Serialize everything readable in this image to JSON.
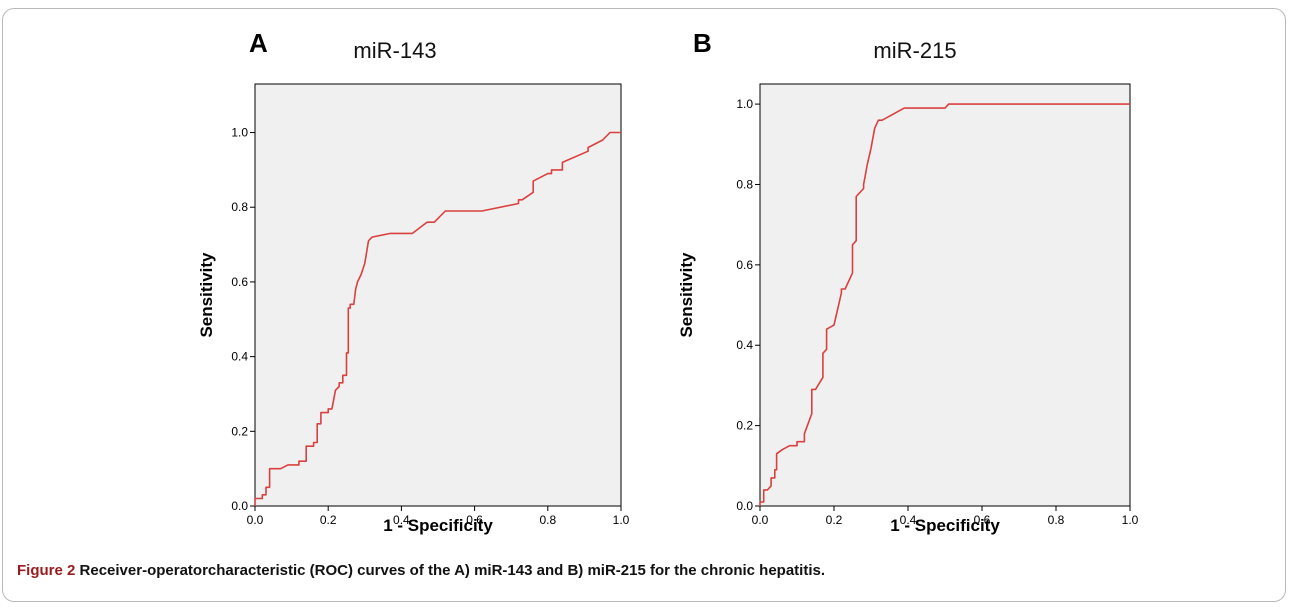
{
  "figure": {
    "caption_label": "Figure 2",
    "caption_text": " Receiver-operatorcharacteristic (ROC) curves of the A) miR-143 and B) miR-215 for the chronic hepatitis."
  },
  "colors": {
    "curve": "#d9403f",
    "plot_bg": "#f0f0f0",
    "axis": "#000000"
  },
  "chart_data": [
    {
      "type": "line",
      "panel": "A",
      "title": "miR-143",
      "xlabel": "1 - Specificity",
      "ylabel": "Sensitivity",
      "xlim": [
        0,
        1.0
      ],
      "ylim": [
        0,
        1.13
      ],
      "xticks": [
        "0.0",
        "0.2",
        "0.4",
        "0.6",
        "0.8",
        "1.0"
      ],
      "yticks": [
        "0.0",
        "0.2",
        "0.4",
        "0.6",
        "0.8",
        "1.0"
      ],
      "grid": false,
      "series": [
        {
          "points": [
            [
              0,
              0
            ],
            [
              0,
              0.02
            ],
            [
              0.02,
              0.02
            ],
            [
              0.02,
              0.03
            ],
            [
              0.03,
              0.03
            ],
            [
              0.03,
              0.05
            ],
            [
              0.04,
              0.05
            ],
            [
              0.04,
              0.1
            ],
            [
              0.07,
              0.1
            ],
            [
              0.09,
              0.11
            ],
            [
              0.12,
              0.11
            ],
            [
              0.12,
              0.12
            ],
            [
              0.14,
              0.12
            ],
            [
              0.14,
              0.16
            ],
            [
              0.16,
              0.16
            ],
            [
              0.16,
              0.17
            ],
            [
              0.17,
              0.17
            ],
            [
              0.17,
              0.22
            ],
            [
              0.18,
              0.22
            ],
            [
              0.18,
              0.25
            ],
            [
              0.2,
              0.25
            ],
            [
              0.2,
              0.26
            ],
            [
              0.21,
              0.26
            ],
            [
              0.22,
              0.31
            ],
            [
              0.23,
              0.32
            ],
            [
              0.23,
              0.33
            ],
            [
              0.24,
              0.33
            ],
            [
              0.24,
              0.35
            ],
            [
              0.25,
              0.35
            ],
            [
              0.25,
              0.41
            ],
            [
              0.255,
              0.41
            ],
            [
              0.255,
              0.53
            ],
            [
              0.26,
              0.53
            ],
            [
              0.26,
              0.54
            ],
            [
              0.27,
              0.54
            ],
            [
              0.275,
              0.58
            ],
            [
              0.28,
              0.6
            ],
            [
              0.29,
              0.62
            ],
            [
              0.3,
              0.65
            ],
            [
              0.31,
              0.71
            ],
            [
              0.32,
              0.72
            ],
            [
              0.37,
              0.73
            ],
            [
              0.43,
              0.73
            ],
            [
              0.47,
              0.76
            ],
            [
              0.49,
              0.76
            ],
            [
              0.52,
              0.79
            ],
            [
              0.62,
              0.79
            ],
            [
              0.72,
              0.81
            ],
            [
              0.72,
              0.82
            ],
            [
              0.73,
              0.82
            ],
            [
              0.76,
              0.84
            ],
            [
              0.76,
              0.87
            ],
            [
              0.8,
              0.89
            ],
            [
              0.81,
              0.89
            ],
            [
              0.81,
              0.9
            ],
            [
              0.84,
              0.9
            ],
            [
              0.84,
              0.92
            ],
            [
              0.91,
              0.95
            ],
            [
              0.91,
              0.96
            ],
            [
              0.95,
              0.98
            ],
            [
              0.97,
              1.0
            ],
            [
              1.0,
              1.0
            ]
          ]
        }
      ]
    },
    {
      "type": "line",
      "panel": "B",
      "title": "miR-215",
      "xlabel": "1 - Specificity",
      "ylabel": "Sensitivity",
      "xlim": [
        0,
        1.0
      ],
      "ylim": [
        0,
        1.05
      ],
      "xticks": [
        "0.0",
        "0.2",
        "0.4",
        "0.6",
        "0.8",
        "1.0"
      ],
      "yticks": [
        "0.0",
        "0.2",
        "0.4",
        "0.6",
        "0.8",
        "1.0"
      ],
      "grid": false,
      "series": [
        {
          "points": [
            [
              0,
              0
            ],
            [
              0,
              0.01
            ],
            [
              0.01,
              0.01
            ],
            [
              0.01,
              0.04
            ],
            [
              0.02,
              0.04
            ],
            [
              0.03,
              0.05
            ],
            [
              0.03,
              0.07
            ],
            [
              0.04,
              0.07
            ],
            [
              0.04,
              0.09
            ],
            [
              0.045,
              0.09
            ],
            [
              0.045,
              0.13
            ],
            [
              0.06,
              0.14
            ],
            [
              0.08,
              0.15
            ],
            [
              0.1,
              0.15
            ],
            [
              0.1,
              0.16
            ],
            [
              0.12,
              0.16
            ],
            [
              0.12,
              0.18
            ],
            [
              0.14,
              0.23
            ],
            [
              0.14,
              0.29
            ],
            [
              0.15,
              0.29
            ],
            [
              0.17,
              0.32
            ],
            [
              0.17,
              0.38
            ],
            [
              0.18,
              0.39
            ],
            [
              0.18,
              0.44
            ],
            [
              0.2,
              0.45
            ],
            [
              0.22,
              0.53
            ],
            [
              0.22,
              0.54
            ],
            [
              0.23,
              0.54
            ],
            [
              0.25,
              0.58
            ],
            [
              0.25,
              0.65
            ],
            [
              0.26,
              0.66
            ],
            [
              0.26,
              0.77
            ],
            [
              0.28,
              0.79
            ],
            [
              0.28,
              0.8
            ],
            [
              0.29,
              0.85
            ],
            [
              0.3,
              0.89
            ],
            [
              0.31,
              0.94
            ],
            [
              0.32,
              0.96
            ],
            [
              0.33,
              0.96
            ],
            [
              0.37,
              0.98
            ],
            [
              0.39,
              0.99
            ],
            [
              0.5,
              0.99
            ],
            [
              0.51,
              1.0
            ],
            [
              1.0,
              1.0
            ]
          ]
        }
      ]
    }
  ]
}
